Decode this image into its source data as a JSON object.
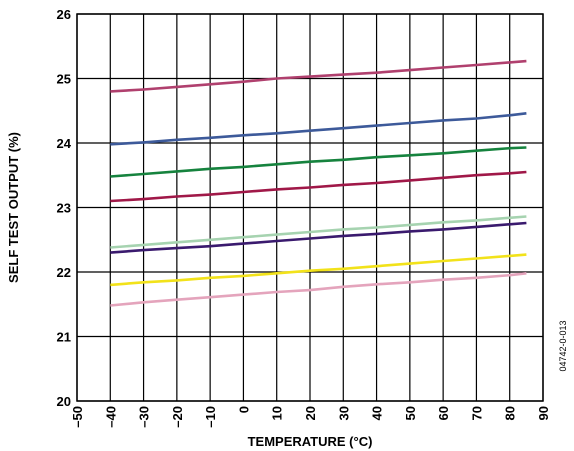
{
  "chart_data": {
    "type": "line",
    "xlabel": "TEMPERATURE (°C)",
    "ylabel": "SELF TEST OUTPUT (%)",
    "xlim": [
      -50,
      90
    ],
    "ylim": [
      20,
      26
    ],
    "xticks": [
      -50,
      -40,
      -30,
      -20,
      -10,
      0,
      10,
      20,
      30,
      40,
      50,
      60,
      70,
      80,
      90
    ],
    "yticks": [
      20,
      21,
      22,
      23,
      24,
      25,
      26
    ],
    "grid": true,
    "figure_code": "04742-0-013",
    "series": [
      {
        "color": "#b0406e",
        "x": [
          -40,
          -30,
          -20,
          -10,
          0,
          10,
          20,
          30,
          40,
          50,
          60,
          70,
          80,
          85
        ],
        "y": [
          24.8,
          24.83,
          24.87,
          24.91,
          24.95,
          25.0,
          25.03,
          25.06,
          25.09,
          25.13,
          25.17,
          25.21,
          25.25,
          25.27
        ]
      },
      {
        "color": "#3d5a9a",
        "x": [
          -40,
          -30,
          -20,
          -10,
          0,
          10,
          20,
          30,
          40,
          50,
          60,
          70,
          80,
          85
        ],
        "y": [
          23.98,
          24.01,
          24.05,
          24.08,
          24.12,
          24.15,
          24.19,
          24.23,
          24.27,
          24.31,
          24.35,
          24.38,
          24.43,
          24.46
        ]
      },
      {
        "color": "#16833e",
        "x": [
          -40,
          -30,
          -20,
          -10,
          0,
          10,
          20,
          30,
          40,
          50,
          60,
          70,
          80,
          85
        ],
        "y": [
          23.48,
          23.52,
          23.56,
          23.6,
          23.63,
          23.67,
          23.71,
          23.74,
          23.78,
          23.81,
          23.84,
          23.88,
          23.92,
          23.93
        ]
      },
      {
        "color": "#a01848",
        "x": [
          -40,
          -30,
          -20,
          -10,
          0,
          10,
          20,
          30,
          40,
          50,
          60,
          70,
          80,
          85
        ],
        "y": [
          23.1,
          23.13,
          23.17,
          23.2,
          23.24,
          23.28,
          23.31,
          23.35,
          23.38,
          23.42,
          23.46,
          23.5,
          23.53,
          23.55
        ]
      },
      {
        "color": "#a6d3b0",
        "x": [
          -40,
          -30,
          -20,
          -10,
          0,
          10,
          20,
          30,
          40,
          50,
          60,
          70,
          80,
          85
        ],
        "y": [
          22.38,
          22.42,
          22.46,
          22.5,
          22.54,
          22.58,
          22.62,
          22.66,
          22.69,
          22.73,
          22.77,
          22.8,
          22.84,
          22.86
        ]
      },
      {
        "color": "#3a1a6e",
        "x": [
          -40,
          -30,
          -20,
          -10,
          0,
          10,
          20,
          30,
          40,
          50,
          60,
          70,
          80,
          85
        ],
        "y": [
          22.3,
          22.34,
          22.37,
          22.4,
          22.44,
          22.48,
          22.52,
          22.56,
          22.59,
          22.63,
          22.66,
          22.7,
          22.74,
          22.76
        ]
      },
      {
        "color": "#f2e21a",
        "x": [
          -40,
          -30,
          -20,
          -10,
          0,
          10,
          20,
          30,
          40,
          50,
          60,
          70,
          80,
          85
        ],
        "y": [
          21.8,
          21.84,
          21.87,
          21.91,
          21.94,
          21.98,
          22.02,
          22.05,
          22.09,
          22.13,
          22.17,
          22.21,
          22.25,
          22.27
        ]
      },
      {
        "color": "#e4a4bc",
        "x": [
          -40,
          -30,
          -20,
          -10,
          0,
          10,
          20,
          30,
          40,
          50,
          60,
          70,
          80,
          85
        ],
        "y": [
          21.48,
          21.53,
          21.57,
          21.61,
          21.65,
          21.69,
          21.72,
          21.77,
          21.81,
          21.84,
          21.88,
          21.91,
          21.95,
          21.98
        ]
      }
    ]
  }
}
